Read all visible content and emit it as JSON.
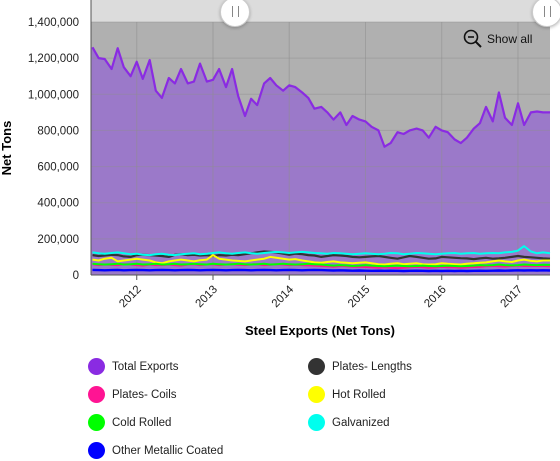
{
  "chart_data": {
    "type": "area",
    "xlabel": "Steel Exports (Net Tons)",
    "ylabel": "Net Tons",
    "ylim": [
      0,
      1400000
    ],
    "yticks": [
      0,
      200000,
      400000,
      600000,
      800000,
      1000000,
      1200000,
      1400000
    ],
    "ytick_labels": [
      "0",
      "200,000",
      "400,000",
      "600,000",
      "800,000",
      "1,000,000",
      "1,200,000",
      "1,400,000"
    ],
    "xlim": [
      2011.4,
      2017.42
    ],
    "xticks": [
      2012,
      2013,
      2014,
      2015,
      2016,
      2017
    ],
    "xtick_labels": [
      "2012",
      "2013",
      "2014",
      "2015",
      "2016",
      "2017"
    ],
    "grid": true,
    "legend_position": "bottom",
    "x": [
      2011.42,
      2011.5,
      2011.58,
      2011.67,
      2011.75,
      2011.83,
      2011.92,
      2012.0,
      2012.08,
      2012.17,
      2012.25,
      2012.33,
      2012.42,
      2012.5,
      2012.58,
      2012.67,
      2012.75,
      2012.83,
      2012.92,
      2013.0,
      2013.08,
      2013.17,
      2013.25,
      2013.33,
      2013.42,
      2013.5,
      2013.58,
      2013.67,
      2013.75,
      2013.83,
      2013.92,
      2014.0,
      2014.08,
      2014.17,
      2014.25,
      2014.33,
      2014.42,
      2014.5,
      2014.58,
      2014.67,
      2014.75,
      2014.83,
      2014.92,
      2015.0,
      2015.08,
      2015.17,
      2015.25,
      2015.33,
      2015.42,
      2015.5,
      2015.58,
      2015.67,
      2015.75,
      2015.83,
      2015.92,
      2016.0,
      2016.08,
      2016.17,
      2016.25,
      2016.33,
      2016.42,
      2016.5,
      2016.58,
      2016.67,
      2016.75,
      2016.83,
      2016.92,
      2017.0,
      2017.08,
      2017.17,
      2017.25,
      2017.33,
      2017.42
    ],
    "series": [
      {
        "name": "Total Exports",
        "color": "#8a2be2",
        "values": [
          1260000,
          1200000,
          1195000,
          1140000,
          1255000,
          1150000,
          1100000,
          1180000,
          1085000,
          1190000,
          1020000,
          980000,
          1090000,
          1060000,
          1140000,
          1060000,
          1070000,
          1170000,
          1070000,
          1080000,
          1140000,
          1040000,
          1140000,
          990000,
          880000,
          975000,
          940000,
          1060000,
          1090000,
          1050000,
          1020000,
          1050000,
          1040000,
          1010000,
          980000,
          920000,
          930000,
          900000,
          860000,
          900000,
          830000,
          880000,
          860000,
          850000,
          820000,
          800000,
          710000,
          730000,
          790000,
          780000,
          800000,
          810000,
          800000,
          760000,
          820000,
          800000,
          790000,
          750000,
          730000,
          760000,
          810000,
          840000,
          930000,
          850000,
          1010000,
          870000,
          830000,
          950000,
          830000,
          900000,
          905000,
          900000,
          900000
        ]
      },
      {
        "name": "Plates- Lengths",
        "color": "#333333",
        "values": [
          110000,
          105000,
          108000,
          112000,
          110000,
          103000,
          100000,
          110000,
          112000,
          110000,
          108000,
          105000,
          100000,
          112000,
          115000,
          110000,
          112000,
          108000,
          110000,
          105000,
          110000,
          108000,
          112000,
          110000,
          115000,
          120000,
          125000,
          130000,
          128000,
          125000,
          118000,
          112000,
          118000,
          115000,
          110000,
          108000,
          100000,
          105000,
          110000,
          108000,
          105000,
          100000,
          98000,
          100000,
          103000,
          105000,
          100000,
          95000,
          90000,
          98000,
          105000,
          100000,
          95000,
          90000,
          92000,
          100000,
          98000,
          95000,
          93000,
          92000,
          88000,
          92000,
          95000,
          90000,
          92000,
          95000,
          100000,
          105000,
          100000,
          98000,
          95000,
          92000,
          90000
        ]
      },
      {
        "name": "Plates- Coils",
        "color": "#ff1493",
        "values": [
          60000,
          55000,
          58000,
          56000,
          55000,
          60000,
          58000,
          55000,
          52000,
          58000,
          55000,
          55000,
          58000,
          55000,
          52000,
          58000,
          60000,
          55000,
          58000,
          60000,
          55000,
          58000,
          60000,
          57000,
          55000,
          58000,
          60000,
          55000,
          57000,
          60000,
          58000,
          55000,
          57000,
          55000,
          53000,
          52000,
          50000,
          48000,
          46000,
          50000,
          48000,
          46000,
          45000,
          44000,
          42000,
          40000,
          42000,
          40000,
          38000,
          40000,
          42000,
          45000,
          43000,
          40000,
          42000,
          45000,
          43000,
          42000,
          40000,
          42000,
          44000,
          45000,
          48000,
          50000,
          48000,
          47000,
          50000,
          52000,
          50000,
          50000,
          50000,
          50000,
          48000
        ]
      },
      {
        "name": "Hot Rolled",
        "color": "#ffff00",
        "values": [
          85000,
          80000,
          90000,
          95000,
          75000,
          80000,
          85000,
          90000,
          85000,
          80000,
          70000,
          65000,
          75000,
          80000,
          85000,
          80000,
          75000,
          82000,
          85000,
          110000,
          90000,
          85000,
          80000,
          78000,
          75000,
          80000,
          85000,
          90000,
          100000,
          95000,
          90000,
          85000,
          88000,
          80000,
          75000,
          70000,
          68000,
          72000,
          75000,
          70000,
          68000,
          65000,
          68000,
          70000,
          65000,
          60000,
          58000,
          62000,
          65000,
          60000,
          62000,
          65000,
          60000,
          58000,
          60000,
          65000,
          62000,
          60000,
          58000,
          62000,
          65000,
          68000,
          70000,
          75000,
          80000,
          75000,
          72000,
          80000,
          85000,
          78000,
          75000,
          80000,
          80000
        ]
      },
      {
        "name": "Cold Rolled",
        "color": "#00ff00",
        "values": [
          62000,
          60000,
          58000,
          60000,
          62000,
          58000,
          60000,
          62000,
          58000,
          60000,
          62000,
          58000,
          60000,
          62000,
          58000,
          60000,
          62000,
          60000,
          58000,
          62000,
          60000,
          58000,
          60000,
          62000,
          60000,
          58000,
          60000,
          62000,
          58000,
          60000,
          62000,
          60000,
          58000,
          60000,
          62000,
          60000,
          58000,
          55000,
          52000,
          55000,
          53000,
          50000,
          52000,
          55000,
          52000,
          50000,
          48000,
          50000,
          52000,
          50000,
          48000,
          50000,
          52000,
          50000,
          48000,
          50000,
          52000,
          50000,
          48000,
          50000,
          52000,
          55000,
          53000,
          55000,
          58000,
          55000,
          53000,
          55000,
          58000,
          56000,
          55000,
          57000,
          56000
        ]
      },
      {
        "name": "Galvanized",
        "color": "#00ffee",
        "values": [
          125000,
          120000,
          118000,
          122000,
          125000,
          120000,
          115000,
          118000,
          112000,
          110000,
          115000,
          118000,
          112000,
          110000,
          115000,
          118000,
          120000,
          115000,
          118000,
          122000,
          125000,
          120000,
          118000,
          122000,
          125000,
          120000,
          118000,
          122000,
          125000,
          128000,
          125000,
          122000,
          125000,
          128000,
          125000,
          122000,
          120000,
          118000,
          122000,
          120000,
          118000,
          115000,
          118000,
          120000,
          118000,
          115000,
          118000,
          122000,
          120000,
          115000,
          118000,
          122000,
          120000,
          118000,
          115000,
          118000,
          120000,
          122000,
          118000,
          120000,
          122000,
          118000,
          120000,
          122000,
          120000,
          125000,
          128000,
          135000,
          160000,
          130000,
          120000,
          125000,
          120000
        ]
      },
      {
        "name": "Other Metallic Coated",
        "color": "#0000ff",
        "values": [
          28000,
          27000,
          26000,
          27000,
          28000,
          26000,
          27000,
          28000,
          27000,
          26000,
          27000,
          28000,
          27000,
          26000,
          27000,
          28000,
          27000,
          26000,
          27000,
          28000,
          27000,
          26000,
          27000,
          28000,
          27000,
          26000,
          27000,
          28000,
          27000,
          26000,
          27000,
          28000,
          27000,
          26000,
          27000,
          28000,
          27000,
          26000,
          25000,
          26000,
          25000,
          24000,
          25000,
          24000,
          23000,
          24000,
          23000,
          24000,
          23000,
          22000,
          23000,
          24000,
          23000,
          22000,
          23000,
          22000,
          23000,
          22000,
          23000,
          22000,
          23000,
          24000,
          23000,
          24000,
          25000,
          24000,
          25000,
          26000,
          25000,
          26000,
          25000,
          26000,
          25000
        ]
      }
    ]
  },
  "zoom": {
    "show_all_label": "Show all",
    "icon": "zoom-out-icon"
  }
}
